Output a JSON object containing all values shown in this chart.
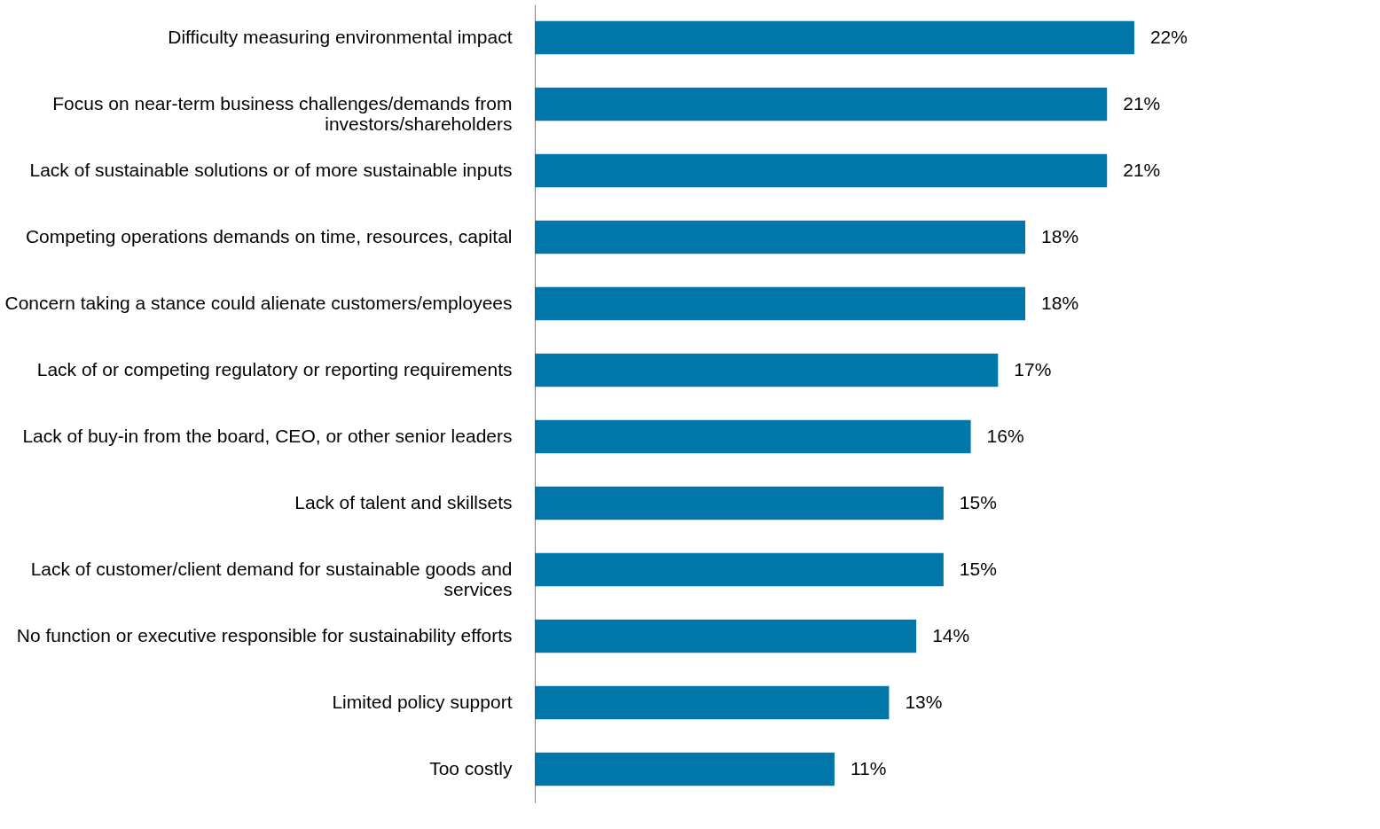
{
  "chart_data": {
    "type": "bar",
    "orientation": "horizontal",
    "categories": [
      "Difficulty measuring environmental impact",
      "Focus on near-term business challenges/demands from investors/shareholders",
      "Lack of sustainable solutions or of more sustainable inputs",
      "Competing operations demands on time, resources, capital",
      "Concern taking a stance could alienate customers/employees",
      "Lack of or competing regulatory or reporting requirements",
      "Lack of buy-in from the board, CEO, or other senior leaders",
      "Lack of talent and skillsets",
      "Lack of customer/client demand for sustainable goods and services",
      "No function or executive responsible for sustainability efforts",
      "Limited policy support",
      "Too costly"
    ],
    "values": [
      22,
      21,
      21,
      18,
      18,
      17,
      16,
      15,
      15,
      14,
      13,
      11
    ],
    "value_labels": [
      "22%",
      "21%",
      "21%",
      "18%",
      "18%",
      "17%",
      "16%",
      "15%",
      "15%",
      "14%",
      "13%",
      "11%"
    ],
    "color": "#0077a8"
  }
}
